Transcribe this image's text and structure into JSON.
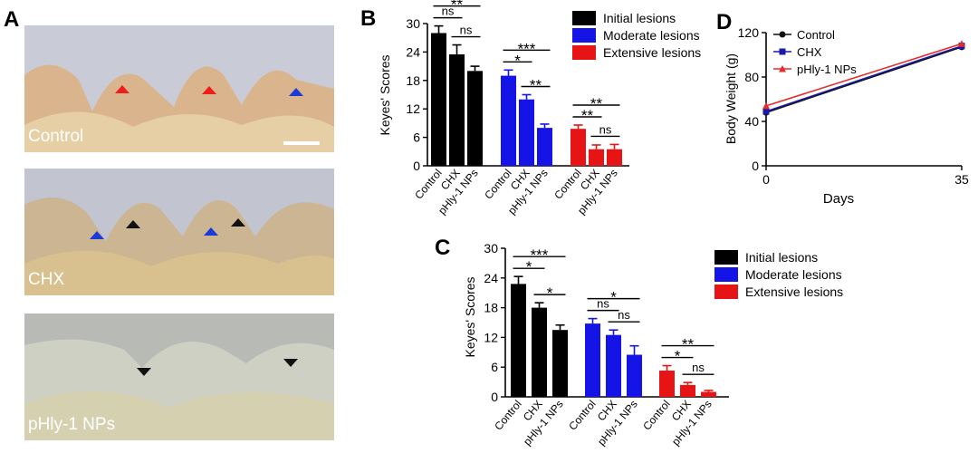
{
  "panels": {
    "a": {
      "letter": "A",
      "photos": [
        {
          "label": "Control",
          "colors": {
            "top": "#c9ccd6",
            "body": "#d9b48c",
            "bone": "#e6cfa5"
          }
        },
        {
          "label": "CHX",
          "colors": {
            "top": "#c2c5d0",
            "body": "#cbb593",
            "bone": "#d8c18e"
          }
        },
        {
          "label": "pHly-1 NPs",
          "colors": {
            "top": "#b8bab6",
            "body": "#cfd0c4",
            "bone": "#d4d0b0"
          }
        }
      ]
    },
    "b": {
      "letter": "B"
    },
    "c": {
      "letter": "C"
    },
    "d": {
      "letter": "D"
    }
  },
  "colors": {
    "initial": "#000000",
    "moderate": "#1414e6",
    "extensive": "#e61414",
    "control": "#111111",
    "chx": "#1a1aa6",
    "nps": "#e62b2b"
  },
  "chart_data": [
    {
      "type": "bar",
      "panel": "B",
      "ylabel": "Keyes' Scores",
      "ylim": [
        0,
        30
      ],
      "yticks": [
        "0",
        "6",
        "12",
        "18",
        "24",
        "30"
      ],
      "categories": [
        "Control",
        "CHX",
        "pHly-1 NPs"
      ],
      "legend_position": "top-right",
      "series": [
        {
          "name": "Initial lesions",
          "values": [
            28,
            23.5,
            20
          ],
          "errors": [
            1.5,
            2.0,
            1.0
          ]
        },
        {
          "name": "Moderate lesions",
          "values": [
            19,
            14,
            8
          ],
          "errors": [
            1.2,
            1.0,
            0.8
          ]
        },
        {
          "name": "Extensive lesions",
          "values": [
            7.8,
            3.5,
            3.5
          ],
          "errors": [
            0.8,
            0.9,
            1.0
          ]
        }
      ],
      "significance": [
        {
          "group": 0,
          "from": 0,
          "to": 1,
          "label": "ns"
        },
        {
          "group": 0,
          "from": 0,
          "to": 2,
          "label": "**"
        },
        {
          "group": 0,
          "from": 1,
          "to": 2,
          "label": "ns"
        },
        {
          "group": 1,
          "from": 0,
          "to": 2,
          "label": "***"
        },
        {
          "group": 1,
          "from": 0,
          "to": 1,
          "label": "*"
        },
        {
          "group": 1,
          "from": 1,
          "to": 2,
          "label": "**"
        },
        {
          "group": 2,
          "from": 0,
          "to": 2,
          "label": "**"
        },
        {
          "group": 2,
          "from": 0,
          "to": 1,
          "label": "**"
        },
        {
          "group": 2,
          "from": 1,
          "to": 2,
          "label": "ns"
        }
      ]
    },
    {
      "type": "bar",
      "panel": "C",
      "ylabel": "Keyes' Scores",
      "ylim": [
        0,
        30
      ],
      "yticks": [
        "0",
        "6",
        "12",
        "18",
        "24",
        "30"
      ],
      "categories": [
        "Control",
        "CHX",
        "pHly-1 NPs"
      ],
      "legend_position": "top-right",
      "series": [
        {
          "name": "Initial lesions",
          "values": [
            22.8,
            18,
            13.5
          ],
          "errors": [
            1.5,
            1.0,
            1.0
          ]
        },
        {
          "name": "Moderate lesions",
          "values": [
            14.8,
            12.5,
            8.5
          ],
          "errors": [
            1.0,
            1.0,
            1.8
          ]
        },
        {
          "name": "Extensive lesions",
          "values": [
            5.3,
            2.4,
            1.0
          ],
          "errors": [
            1.0,
            0.5,
            0.3
          ]
        }
      ],
      "significance": [
        {
          "group": 0,
          "from": 0,
          "to": 2,
          "label": "***"
        },
        {
          "group": 0,
          "from": 0,
          "to": 1,
          "label": "*"
        },
        {
          "group": 0,
          "from": 1,
          "to": 2,
          "label": "*"
        },
        {
          "group": 1,
          "from": 0,
          "to": 2,
          "label": "*"
        },
        {
          "group": 1,
          "from": 0,
          "to": 1,
          "label": "ns"
        },
        {
          "group": 1,
          "from": 1,
          "to": 2,
          "label": "ns"
        },
        {
          "group": 2,
          "from": 0,
          "to": 2,
          "label": "**"
        },
        {
          "group": 2,
          "from": 0,
          "to": 1,
          "label": "*"
        },
        {
          "group": 2,
          "from": 1,
          "to": 2,
          "label": "ns"
        }
      ]
    },
    {
      "type": "line",
      "panel": "D",
      "xlabel": "Days",
      "ylabel": "Body Weight (g)",
      "ylim": [
        0,
        120
      ],
      "yticks": [
        "0",
        "40",
        "80",
        "120"
      ],
      "xlim": [
        0,
        35
      ],
      "xticks": [
        "0",
        "35"
      ],
      "legend_position": "top-left",
      "series": [
        {
          "name": "Control",
          "x": [
            0,
            35
          ],
          "y": [
            48,
            107
          ]
        },
        {
          "name": "CHX",
          "x": [
            0,
            35
          ],
          "y": [
            49,
            108
          ]
        },
        {
          "name": "pHly-1 NPs",
          "x": [
            0,
            35
          ],
          "y": [
            54,
            110
          ]
        }
      ]
    }
  ]
}
